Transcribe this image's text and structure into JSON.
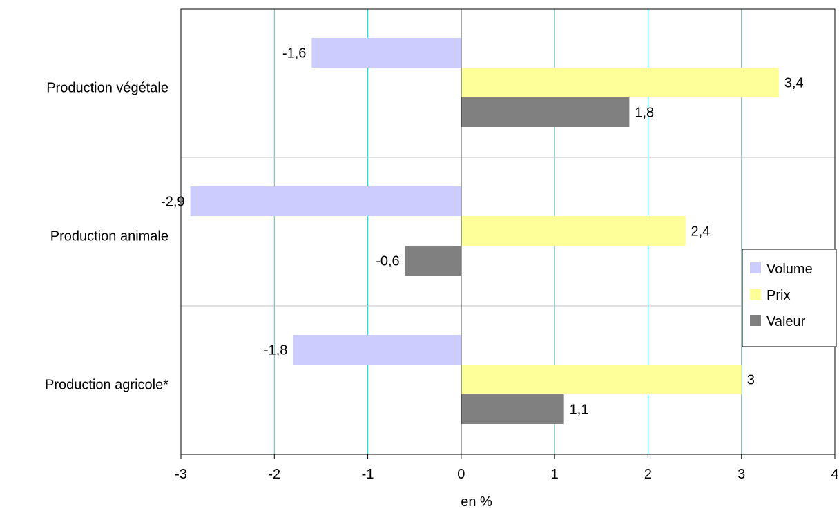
{
  "chart_data": {
    "type": "bar",
    "orientation": "horizontal",
    "categories": [
      "Production végétale",
      "Production animale",
      "Production agricole*"
    ],
    "series": [
      {
        "name": "Volume",
        "values": [
          -1.6,
          -2.9,
          -1.8
        ],
        "labels": [
          "-1,6",
          "-2,9",
          "-1,8"
        ],
        "color": "#ccccff"
      },
      {
        "name": "Prix",
        "values": [
          3.4,
          2.4,
          3.0
        ],
        "labels": [
          "3,4",
          "2,4",
          "3"
        ],
        "color": "#ffff99"
      },
      {
        "name": "Valeur",
        "values": [
          1.8,
          -0.6,
          1.1
        ],
        "labels": [
          "1,8",
          "-0,6",
          "1,1"
        ],
        "color": "#808080"
      }
    ],
    "xlabel": "en %",
    "xlim": [
      -3,
      4
    ],
    "xticks": [
      -3,
      -2,
      -1,
      0,
      1,
      2,
      3,
      4
    ],
    "xtick_labels": [
      "-3",
      "-2",
      "-1",
      "0",
      "1",
      "2",
      "3",
      "4"
    ],
    "grid": true,
    "grid_color": "#33cccc",
    "legend_position": "right"
  }
}
